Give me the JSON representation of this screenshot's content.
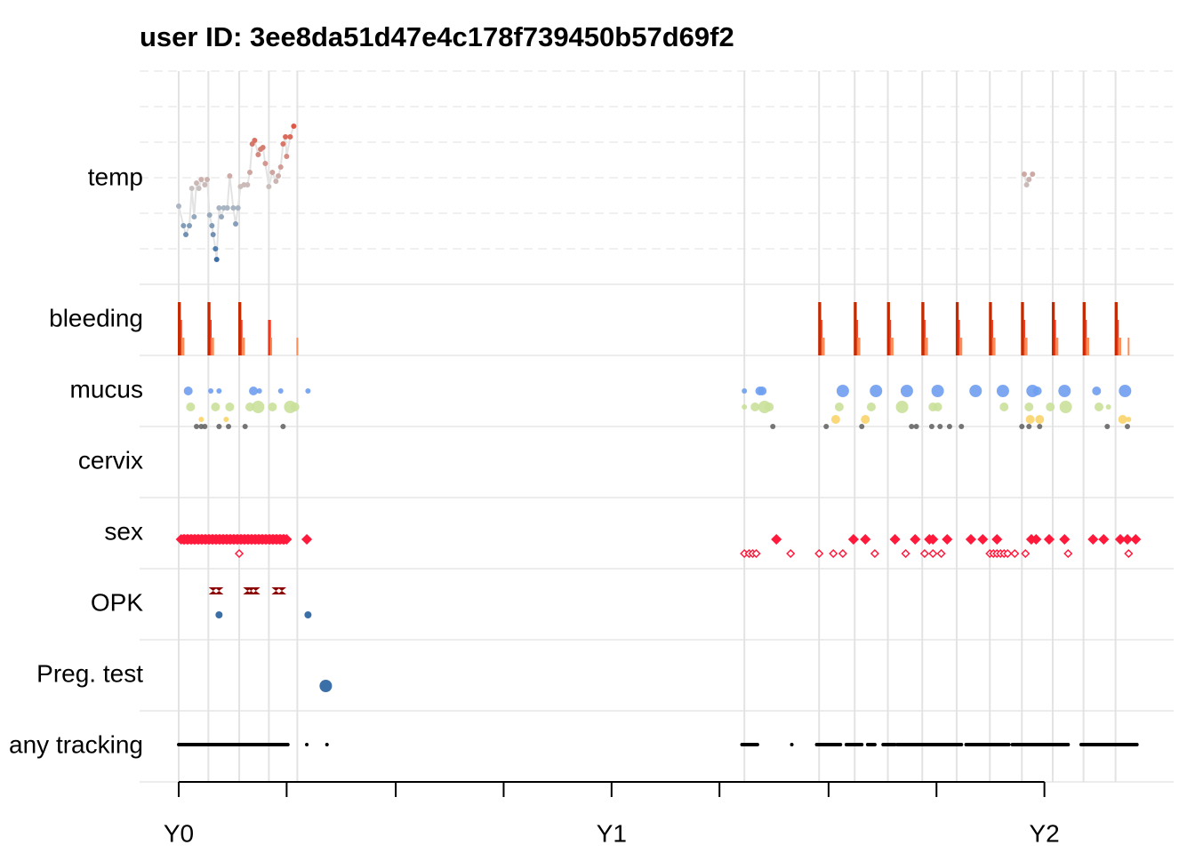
{
  "chart_data": {
    "type": "timeline",
    "title": "user ID:  3ee8da51d47e4c178f739450b57d69f2",
    "rows": [
      "temp",
      "bleeding",
      "mucus",
      "cervix",
      "sex",
      "OPK",
      "Preg. test",
      "any tracking"
    ],
    "xlim": [
      -33,
      839
    ],
    "xticks": [
      {
        "value": 0,
        "label": "Y0"
      },
      {
        "value": 365,
        "label": "Y1"
      },
      {
        "value": 730,
        "label": "Y2"
      }
    ],
    "xminorticks": [
      91,
      183,
      274,
      456,
      548,
      639
    ],
    "cycle_starts": [
      0,
      25,
      51,
      76,
      100,
      477,
      540,
      570,
      598,
      627,
      656,
      684,
      711,
      737,
      763,
      790
    ],
    "grid": true,
    "temp": {
      "ylim": [
        36.0,
        37.2
      ],
      "grid": [
        36.2,
        36.4,
        36.6,
        36.8,
        37.0,
        37.2
      ],
      "colors": [
        "#3b6fa8",
        "#c8c8c8",
        "#dc5a48"
      ],
      "line_color": "#e3e3e3",
      "x": [
        0,
        4,
        6,
        9,
        11,
        13,
        15,
        17,
        19,
        22,
        24,
        26,
        28,
        29,
        31,
        32,
        34,
        36,
        38,
        41,
        43,
        46,
        48,
        50,
        52,
        55,
        58,
        60,
        62,
        64,
        67,
        69,
        71,
        73,
        76,
        79,
        82,
        84,
        86,
        88,
        90,
        91,
        94,
        97,
        null,
        713,
        715,
        717,
        720
      ],
      "values": [
        36.44,
        36.33,
        36.28,
        36.33,
        36.54,
        36.38,
        36.57,
        36.54,
        36.59,
        36.56,
        36.59,
        36.39,
        36.33,
        36.28,
        36.2,
        36.14,
        36.43,
        36.38,
        36.43,
        36.43,
        36.61,
        36.43,
        36.34,
        36.43,
        36.55,
        36.56,
        36.56,
        36.63,
        36.79,
        36.81,
        36.73,
        36.76,
        36.77,
        36.68,
        36.55,
        36.63,
        36.58,
        36.61,
        36.66,
        36.79,
        36.83,
        36.72,
        36.83,
        36.89,
        null,
        36.62,
        36.56,
        36.59,
        36.62
      ]
    },
    "bleeding": {
      "max": 3,
      "colors": [
        "#fc8d59",
        "#f03b20",
        "#c42a00"
      ],
      "x": [
        0,
        1,
        2,
        3,
        4,
        25,
        26,
        27,
        28,
        29,
        51,
        52,
        53,
        54,
        55,
        76,
        77,
        78,
        100,
        540,
        541,
        542,
        543,
        544,
        570,
        571,
        572,
        573,
        574,
        598,
        599,
        600,
        601,
        602,
        627,
        628,
        629,
        630,
        631,
        656,
        657,
        658,
        659,
        660,
        684,
        685,
        686,
        687,
        688,
        711,
        712,
        713,
        714,
        715,
        737,
        738,
        739,
        740,
        741,
        763,
        764,
        765,
        766,
        767,
        790,
        791,
        792,
        793,
        794,
        801
      ],
      "values": [
        3,
        3,
        2,
        1,
        1,
        3,
        3,
        2,
        1,
        1,
        3,
        3,
        2,
        1,
        1,
        2,
        2,
        1,
        1,
        3,
        3,
        2,
        1,
        1,
        3,
        3,
        2,
        1,
        1,
        3,
        3,
        2,
        1,
        1,
        3,
        3,
        2,
        1,
        1,
        3,
        3,
        2,
        1,
        1,
        3,
        3,
        2,
        1,
        1,
        3,
        3,
        2,
        1,
        1,
        3,
        3,
        2,
        1,
        1,
        3,
        3,
        2,
        1,
        1,
        3,
        3,
        2,
        1,
        1,
        1
      ]
    },
    "mucus": {
      "series": [
        {
          "color": "#6f9ef0",
          "x": [
            8,
            27,
            34,
            63,
            68,
            86,
            109,
            477,
            490,
            492,
            560,
            588,
            614,
            640,
            672,
            695,
            720,
            724,
            747,
            774,
            798
          ],
          "values": [
            2,
            1,
            1,
            2,
            1,
            1,
            1,
            1,
            2,
            2,
            3,
            3,
            3,
            3,
            3,
            3,
            3,
            2,
            3,
            2,
            3
          ]
        },
        {
          "color": "#c9e09a",
          "x": [
            10,
            31,
            43,
            60,
            67,
            79,
            94,
            98,
            477,
            486,
            494,
            498,
            557,
            584,
            610,
            636,
            640,
            696,
            717,
            735,
            748,
            776,
            784
          ],
          "values": [
            2,
            2,
            2,
            2,
            3,
            2,
            3,
            2,
            1,
            2,
            3,
            2,
            2,
            2,
            3,
            2,
            2,
            2,
            2,
            2,
            3,
            2,
            1
          ]
        },
        {
          "color": "#fad46b",
          "x": [
            19,
            40,
            554,
            579,
            718,
            726,
            796,
            801
          ],
          "values": [
            1,
            1,
            2,
            2,
            2,
            2,
            2,
            1
          ]
        },
        {
          "color": "#666666",
          "x": [
            15,
            19,
            22,
            34,
            42,
            56,
            88,
            501,
            546,
            576,
            618,
            622,
            635,
            642,
            650,
            660,
            711,
            717,
            726,
            783,
            800
          ],
          "values": [
            1,
            1,
            1,
            1,
            1,
            1,
            1,
            1,
            1,
            1,
            1,
            1,
            1,
            1,
            1,
            1,
            1,
            1,
            1,
            1,
            1
          ]
        }
      ]
    },
    "sex": {
      "series": [
        {
          "color": "#ff1a3c",
          "marker": "filled",
          "x": [
            2,
            4,
            5,
            7,
            8,
            10,
            11,
            13,
            14,
            16,
            17,
            19,
            20,
            22,
            23,
            25,
            26,
            28,
            29,
            31,
            32,
            34,
            35,
            37,
            38,
            40,
            41,
            43,
            44,
            46,
            47,
            49,
            50,
            52,
            53,
            55,
            56,
            58,
            59,
            61,
            62,
            64,
            65,
            67,
            68,
            70,
            71,
            73,
            74,
            76,
            77,
            79,
            80,
            82,
            83,
            85,
            86,
            88,
            89,
            91,
            108,
            504,
            569,
            579,
            604,
            621,
            633,
            636,
            648,
            668,
            678,
            690,
            719,
            723,
            734,
            747,
            771,
            780,
            794,
            800,
            807
          ]
        },
        {
          "color": "#ff1a3c",
          "marker": "open",
          "x": [
            51,
            477,
            481,
            484,
            487,
            516,
            540,
            552,
            560,
            587,
            613,
            629,
            636,
            643,
            684,
            687,
            690,
            693,
            696,
            699,
            705,
            714,
            750,
            801
          ]
        }
      ]
    },
    "opk": {
      "series": [
        {
          "color": "#8b0000",
          "marker": "cross",
          "x": [
            29,
            34,
            58,
            61,
            65,
            82,
            87
          ]
        },
        {
          "color": "#3b6fa8",
          "marker": "dot",
          "x": [
            34,
            109
          ]
        }
      ]
    },
    "pregnancy_test": {
      "series": [
        {
          "color": "#3b6fa8",
          "marker": "big-dot",
          "x": [
            124
          ]
        }
      ]
    },
    "tracking": {
      "color": "#000000",
      "spans": [
        [
          0,
          92
        ],
        [
          108,
          108
        ],
        [
          125,
          125
        ],
        [
          475,
          488
        ],
        [
          517,
          517
        ],
        [
          538,
          558
        ],
        [
          563,
          576
        ],
        [
          581,
          587
        ],
        [
          594,
          604
        ],
        [
          606,
          660
        ],
        [
          664,
          700
        ],
        [
          703,
          750
        ],
        [
          761,
          808
        ]
      ]
    }
  }
}
